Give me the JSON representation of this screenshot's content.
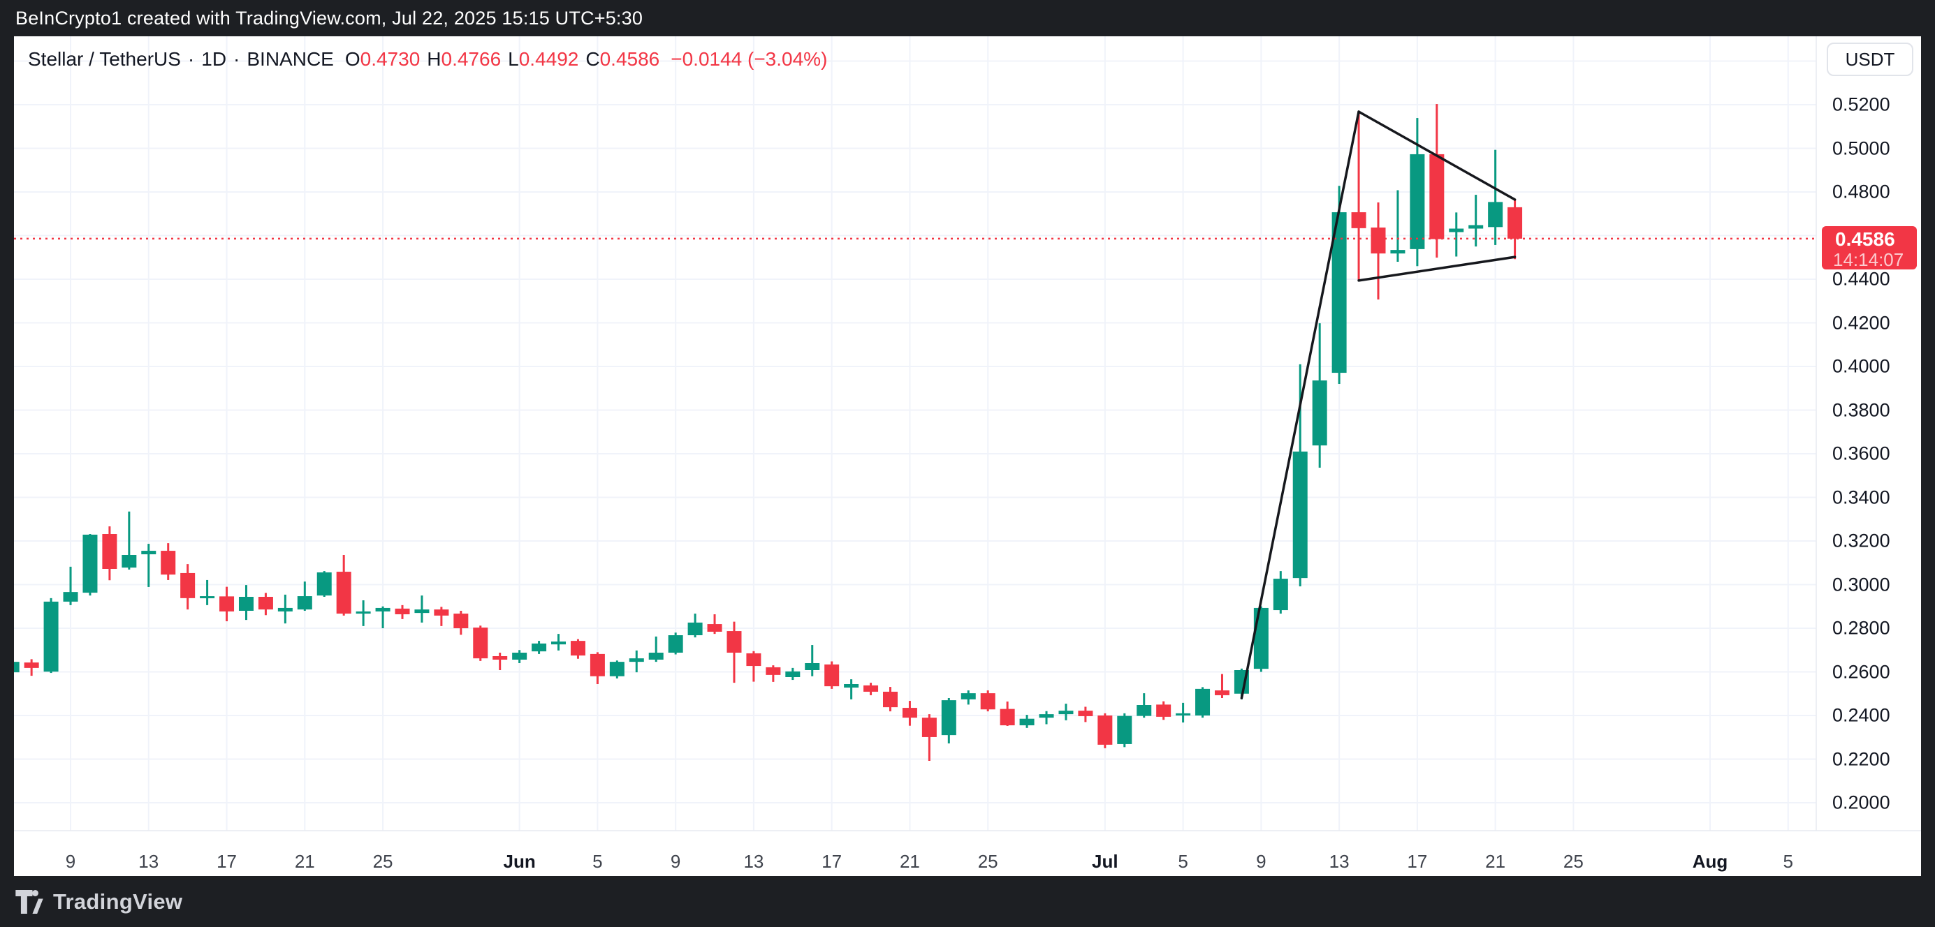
{
  "top_bar": {
    "title": "BeInCrypto1 created with TradingView.com, Jul 22, 2025 15:15 UTC+5:30"
  },
  "legend": {
    "symbol": "Stellar / TetherUS",
    "separator": "·",
    "interval": "1D",
    "exchange": "BINANCE",
    "o_label": "O",
    "o_value": "0.4730",
    "h_label": "H",
    "h_value": "0.4766",
    "l_label": "L",
    "l_value": "0.4492",
    "c_label": "C",
    "c_value": "0.4586",
    "change": "−0.0144 (−3.04%)"
  },
  "right_axis": {
    "currency_button": "USDT",
    "labels": [
      {
        "text": "0.5200",
        "value": 0.52
      },
      {
        "text": "0.5000",
        "value": 0.5
      },
      {
        "text": "0.4800",
        "value": 0.48
      },
      {
        "text": "0.4400",
        "value": 0.44
      },
      {
        "text": "0.4200",
        "value": 0.42
      },
      {
        "text": "0.4000",
        "value": 0.4
      },
      {
        "text": "0.3800",
        "value": 0.38
      },
      {
        "text": "0.3600",
        "value": 0.36
      },
      {
        "text": "0.3400",
        "value": 0.34
      },
      {
        "text": "0.3200",
        "value": 0.32
      },
      {
        "text": "0.3000",
        "value": 0.3
      },
      {
        "text": "0.2800",
        "value": 0.28
      },
      {
        "text": "0.2600",
        "value": 0.26
      },
      {
        "text": "0.2400",
        "value": 0.24
      },
      {
        "text": "0.2200",
        "value": 0.22
      },
      {
        "text": "0.2000",
        "value": 0.2
      }
    ],
    "current_price": "0.4586",
    "countdown": "14:14:07"
  },
  "bottom_axis": {
    "ticks": [
      {
        "label": "9",
        "day": 3,
        "bold": false
      },
      {
        "label": "13",
        "day": 7,
        "bold": false
      },
      {
        "label": "17",
        "day": 11,
        "bold": false
      },
      {
        "label": "21",
        "day": 15,
        "bold": false
      },
      {
        "label": "25",
        "day": 19,
        "bold": false
      },
      {
        "label": "Jun",
        "day": 26,
        "bold": true
      },
      {
        "label": "5",
        "day": 30,
        "bold": false
      },
      {
        "label": "9",
        "day": 34,
        "bold": false
      },
      {
        "label": "13",
        "day": 38,
        "bold": false
      },
      {
        "label": "17",
        "day": 42,
        "bold": false
      },
      {
        "label": "21",
        "day": 46,
        "bold": false
      },
      {
        "label": "25",
        "day": 50,
        "bold": false
      },
      {
        "label": "Jul",
        "day": 56,
        "bold": true
      },
      {
        "label": "5",
        "day": 60,
        "bold": false
      },
      {
        "label": "9",
        "day": 64,
        "bold": false
      },
      {
        "label": "13",
        "day": 68,
        "bold": false
      },
      {
        "label": "17",
        "day": 72,
        "bold": false
      },
      {
        "label": "21",
        "day": 76,
        "bold": false
      },
      {
        "label": "25",
        "day": 80,
        "bold": false
      },
      {
        "label": "Aug",
        "day": 87,
        "bold": true
      },
      {
        "label": "5",
        "day": 91,
        "bold": false
      }
    ]
  },
  "footer": {
    "brand": "TradingView"
  },
  "colors": {
    "up": "#089981",
    "down": "#f23645",
    "grid": "#f0f3fa",
    "axis_border": "#e7eaf0",
    "price_line": "#f23645",
    "trend_line": "#16181d",
    "frame": "#1d1f23",
    "label_bg": "#f23645"
  },
  "chart_data": {
    "type": "candlestick",
    "title": "Stellar / TetherUS 1D BINANCE",
    "ylim": [
      0.1872,
      0.5545
    ],
    "price_gridlines": [
      0.54,
      0.52,
      0.5,
      0.48,
      0.46,
      0.44,
      0.42,
      0.4,
      0.38,
      0.36,
      0.34,
      0.32,
      0.3,
      0.28,
      0.26,
      0.24,
      0.22,
      0.2
    ],
    "grid": true,
    "price_line_value": 0.4586,
    "candles": [
      {
        "date": "May 6",
        "o": 0.2598,
        "h": 0.2652,
        "l": 0.2586,
        "c": 0.2646
      },
      {
        "date": "May 7",
        "o": 0.2643,
        "h": 0.2658,
        "l": 0.2582,
        "c": 0.2618
      },
      {
        "date": "May 8",
        "o": 0.2601,
        "h": 0.2938,
        "l": 0.2595,
        "c": 0.2922
      },
      {
        "date": "May 9",
        "o": 0.2922,
        "h": 0.3082,
        "l": 0.2906,
        "c": 0.2966
      },
      {
        "date": "May 10",
        "o": 0.2963,
        "h": 0.3232,
        "l": 0.295,
        "c": 0.3229
      },
      {
        "date": "May 11",
        "o": 0.3232,
        "h": 0.3267,
        "l": 0.302,
        "c": 0.3072
      },
      {
        "date": "May 12",
        "o": 0.3078,
        "h": 0.3335,
        "l": 0.3069,
        "c": 0.3136
      },
      {
        "date": "May 13",
        "o": 0.3139,
        "h": 0.3187,
        "l": 0.2989,
        "c": 0.3155
      },
      {
        "date": "May 14",
        "o": 0.3155,
        "h": 0.319,
        "l": 0.3021,
        "c": 0.3046
      },
      {
        "date": "May 15",
        "o": 0.3053,
        "h": 0.3094,
        "l": 0.2886,
        "c": 0.2938
      },
      {
        "date": "May 16",
        "o": 0.294,
        "h": 0.3021,
        "l": 0.2906,
        "c": 0.2947
      },
      {
        "date": "May 17",
        "o": 0.2946,
        "h": 0.299,
        "l": 0.2832,
        "c": 0.2877
      },
      {
        "date": "May 18",
        "o": 0.288,
        "h": 0.2998,
        "l": 0.2838,
        "c": 0.2944
      },
      {
        "date": "May 19",
        "o": 0.2944,
        "h": 0.2962,
        "l": 0.286,
        "c": 0.2886
      },
      {
        "date": "May 20",
        "o": 0.2877,
        "h": 0.2954,
        "l": 0.2822,
        "c": 0.2893
      },
      {
        "date": "May 21",
        "o": 0.2886,
        "h": 0.3014,
        "l": 0.288,
        "c": 0.2947
      },
      {
        "date": "May 22",
        "o": 0.295,
        "h": 0.3062,
        "l": 0.2944,
        "c": 0.3056
      },
      {
        "date": "May 23",
        "o": 0.3059,
        "h": 0.3136,
        "l": 0.2858,
        "c": 0.2867
      },
      {
        "date": "May 24",
        "o": 0.2867,
        "h": 0.2928,
        "l": 0.281,
        "c": 0.2877
      },
      {
        "date": "May 25",
        "o": 0.2877,
        "h": 0.29,
        "l": 0.28,
        "c": 0.2893
      },
      {
        "date": "May 26",
        "o": 0.289,
        "h": 0.2906,
        "l": 0.2842,
        "c": 0.2864
      },
      {
        "date": "May 27",
        "o": 0.287,
        "h": 0.295,
        "l": 0.2826,
        "c": 0.2886
      },
      {
        "date": "May 28",
        "o": 0.2886,
        "h": 0.2898,
        "l": 0.281,
        "c": 0.2858
      },
      {
        "date": "May 29",
        "o": 0.2867,
        "h": 0.288,
        "l": 0.277,
        "c": 0.28
      },
      {
        "date": "May 30",
        "o": 0.2803,
        "h": 0.2812,
        "l": 0.265,
        "c": 0.2662
      },
      {
        "date": "May 31",
        "o": 0.2672,
        "h": 0.2688,
        "l": 0.2608,
        "c": 0.2656
      },
      {
        "date": "Jun 1",
        "o": 0.2656,
        "h": 0.27,
        "l": 0.264,
        "c": 0.2688
      },
      {
        "date": "Jun 2",
        "o": 0.2694,
        "h": 0.2742,
        "l": 0.2682,
        "c": 0.273
      },
      {
        "date": "Jun 3",
        "o": 0.2726,
        "h": 0.2774,
        "l": 0.2698,
        "c": 0.2739
      },
      {
        "date": "Jun 4",
        "o": 0.2742,
        "h": 0.275,
        "l": 0.266,
        "c": 0.2675
      },
      {
        "date": "Jun 5",
        "o": 0.2682,
        "h": 0.269,
        "l": 0.2544,
        "c": 0.258
      },
      {
        "date": "Jun 6",
        "o": 0.258,
        "h": 0.2652,
        "l": 0.257,
        "c": 0.2646
      },
      {
        "date": "Jun 7",
        "o": 0.2646,
        "h": 0.2698,
        "l": 0.2598,
        "c": 0.2662
      },
      {
        "date": "Jun 8",
        "o": 0.2656,
        "h": 0.2762,
        "l": 0.2646,
        "c": 0.2688
      },
      {
        "date": "Jun 9",
        "o": 0.2688,
        "h": 0.278,
        "l": 0.268,
        "c": 0.2768
      },
      {
        "date": "Jun 10",
        "o": 0.2768,
        "h": 0.2867,
        "l": 0.2758,
        "c": 0.2826
      },
      {
        "date": "Jun 11",
        "o": 0.2819,
        "h": 0.2864,
        "l": 0.2774,
        "c": 0.2784
      },
      {
        "date": "Jun 12",
        "o": 0.2787,
        "h": 0.283,
        "l": 0.255,
        "c": 0.2688
      },
      {
        "date": "Jun 13",
        "o": 0.2685,
        "h": 0.2695,
        "l": 0.2555,
        "c": 0.2627
      },
      {
        "date": "Jun 14",
        "o": 0.2621,
        "h": 0.263,
        "l": 0.2554,
        "c": 0.2586
      },
      {
        "date": "Jun 15",
        "o": 0.2576,
        "h": 0.2618,
        "l": 0.2563,
        "c": 0.2602
      },
      {
        "date": "Jun 16",
        "o": 0.2608,
        "h": 0.2723,
        "l": 0.258,
        "c": 0.264
      },
      {
        "date": "Jun 17",
        "o": 0.2634,
        "h": 0.2648,
        "l": 0.2522,
        "c": 0.2534
      },
      {
        "date": "Jun 18",
        "o": 0.2528,
        "h": 0.2566,
        "l": 0.2474,
        "c": 0.2544
      },
      {
        "date": "Jun 19",
        "o": 0.2538,
        "h": 0.255,
        "l": 0.2493,
        "c": 0.2509
      },
      {
        "date": "Jun 20",
        "o": 0.2509,
        "h": 0.2531,
        "l": 0.2419,
        "c": 0.2438
      },
      {
        "date": "Jun 21",
        "o": 0.2435,
        "h": 0.2467,
        "l": 0.2353,
        "c": 0.239
      },
      {
        "date": "Jun 22",
        "o": 0.239,
        "h": 0.2406,
        "l": 0.2192,
        "c": 0.2301
      },
      {
        "date": "Jun 23",
        "o": 0.231,
        "h": 0.248,
        "l": 0.2272,
        "c": 0.247
      },
      {
        "date": "Jun 24",
        "o": 0.2474,
        "h": 0.2515,
        "l": 0.245,
        "c": 0.2502
      },
      {
        "date": "Jun 25",
        "o": 0.2502,
        "h": 0.2515,
        "l": 0.2419,
        "c": 0.2428
      },
      {
        "date": "Jun 26",
        "o": 0.243,
        "h": 0.2464,
        "l": 0.2352,
        "c": 0.2355
      },
      {
        "date": "Jun 27",
        "o": 0.2355,
        "h": 0.2403,
        "l": 0.2343,
        "c": 0.2385
      },
      {
        "date": "Jun 28",
        "o": 0.239,
        "h": 0.242,
        "l": 0.236,
        "c": 0.2406
      },
      {
        "date": "Jun 29",
        "o": 0.2406,
        "h": 0.2454,
        "l": 0.2378,
        "c": 0.2422
      },
      {
        "date": "Jun 30",
        "o": 0.2422,
        "h": 0.244,
        "l": 0.237,
        "c": 0.2397
      },
      {
        "date": "Jul 1",
        "o": 0.24,
        "h": 0.241,
        "l": 0.225,
        "c": 0.2266
      },
      {
        "date": "Jul 2",
        "o": 0.2269,
        "h": 0.241,
        "l": 0.2255,
        "c": 0.2398
      },
      {
        "date": "Jul 3",
        "o": 0.2398,
        "h": 0.2502,
        "l": 0.239,
        "c": 0.2448
      },
      {
        "date": "Jul 4",
        "o": 0.245,
        "h": 0.2465,
        "l": 0.238,
        "c": 0.2394
      },
      {
        "date": "Jul 5",
        "o": 0.24,
        "h": 0.2458,
        "l": 0.2368,
        "c": 0.241
      },
      {
        "date": "Jul 6",
        "o": 0.24,
        "h": 0.253,
        "l": 0.239,
        "c": 0.2522
      },
      {
        "date": "Jul 7",
        "o": 0.2515,
        "h": 0.259,
        "l": 0.248,
        "c": 0.2493
      },
      {
        "date": "Jul 8",
        "o": 0.25,
        "h": 0.2615,
        "l": 0.2474,
        "c": 0.2608
      },
      {
        "date": "Jul 9",
        "o": 0.2614,
        "h": 0.29,
        "l": 0.26,
        "c": 0.2893
      },
      {
        "date": "Jul 10",
        "o": 0.2883,
        "h": 0.3062,
        "l": 0.2867,
        "c": 0.3027
      },
      {
        "date": "Jul 11",
        "o": 0.303,
        "h": 0.401,
        "l": 0.2992,
        "c": 0.361
      },
      {
        "date": "Jul 12",
        "o": 0.3638,
        "h": 0.4198,
        "l": 0.3536,
        "c": 0.3936
      },
      {
        "date": "Jul 13",
        "o": 0.3971,
        "h": 0.4828,
        "l": 0.392,
        "c": 0.4707
      },
      {
        "date": "Jul 14",
        "o": 0.4707,
        "h": 0.5164,
        "l": 0.4394,
        "c": 0.4634
      },
      {
        "date": "Jul 15",
        "o": 0.4637,
        "h": 0.4752,
        "l": 0.4307,
        "c": 0.4518
      },
      {
        "date": "Jul 16",
        "o": 0.4518,
        "h": 0.4808,
        "l": 0.448,
        "c": 0.4534
      },
      {
        "date": "Jul 17",
        "o": 0.4538,
        "h": 0.5139,
        "l": 0.446,
        "c": 0.4973
      },
      {
        "date": "Jul 18",
        "o": 0.4973,
        "h": 0.5203,
        "l": 0.4499,
        "c": 0.4584
      },
      {
        "date": "Jul 19",
        "o": 0.4616,
        "h": 0.4706,
        "l": 0.4504,
        "c": 0.4632
      },
      {
        "date": "Jul 20",
        "o": 0.4632,
        "h": 0.4787,
        "l": 0.455,
        "c": 0.4648
      },
      {
        "date": "Jul 21",
        "o": 0.4639,
        "h": 0.4993,
        "l": 0.4557,
        "c": 0.4754
      },
      {
        "date": "Jul 22",
        "o": 0.473,
        "h": 0.4766,
        "l": 0.4492,
        "c": 0.4586
      }
    ],
    "annotations": {
      "type": "triangle-pattern",
      "pole": {
        "from": {
          "date": "Jul 8",
          "day": 63,
          "price": 0.248
        },
        "to": {
          "date": "Jul 14",
          "day": 69,
          "price": 0.5168
        }
      },
      "upper_line": {
        "from": {
          "date": "Jul 14",
          "day": 69,
          "price": 0.5168
        },
        "to": {
          "date": "Jul 22",
          "day": 77,
          "price": 0.4765
        }
      },
      "lower_line": {
        "from": {
          "date": "Jul 14",
          "day": 69,
          "price": 0.4394
        },
        "to": {
          "date": "Jul 22",
          "day": 77,
          "price": 0.4502
        }
      }
    }
  }
}
